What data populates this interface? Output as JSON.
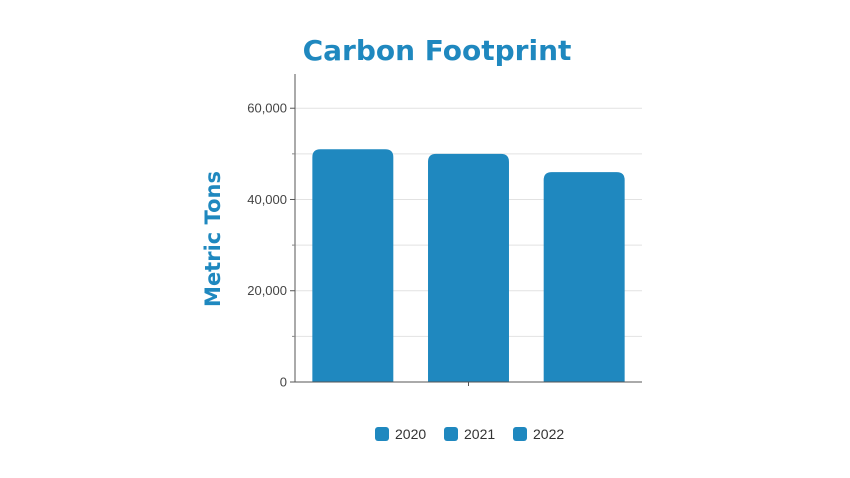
{
  "chart_data": {
    "type": "bar",
    "title": "Carbon Footprint",
    "ylabel": "Metric Tons",
    "xlabel": "",
    "categories": [
      "2020",
      "2021",
      "2022"
    ],
    "values": [
      51000,
      50000,
      46000
    ],
    "ylim": [
      0,
      67500
    ],
    "yticks": [
      0,
      20000,
      40000,
      60000
    ],
    "ytick_labels": [
      "0",
      "20,000",
      "40,000",
      "60,000"
    ],
    "grid": true,
    "legend": {
      "placement": "bottom",
      "entries": [
        "2020",
        "2021",
        "2022"
      ]
    },
    "colors": {
      "bar": "#1f88bf",
      "title": "#1f88bf",
      "grid": "#e2e2e2",
      "axis": "#555555"
    }
  }
}
